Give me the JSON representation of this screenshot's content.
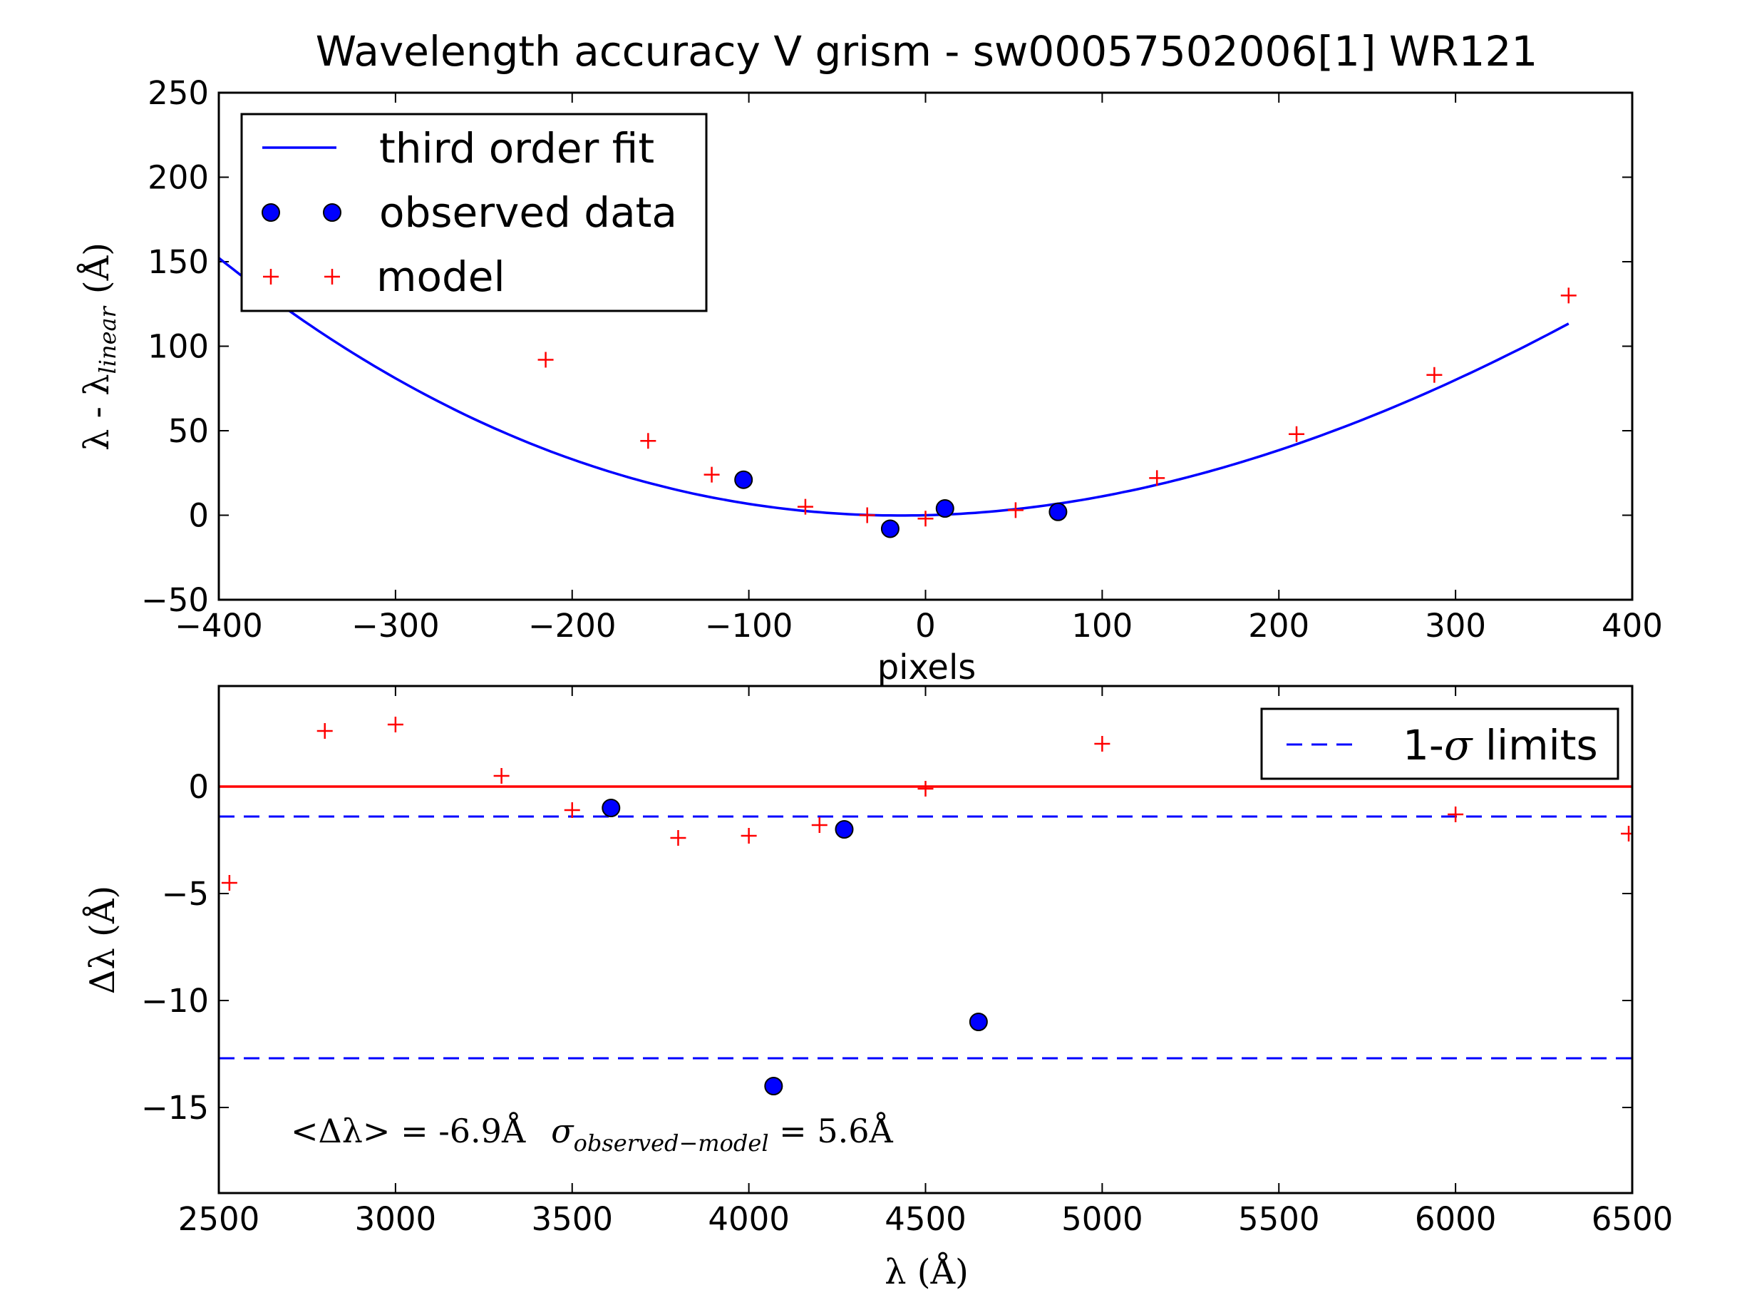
{
  "chart_data": [
    {
      "type": "scatter",
      "title": "Wavelength accuracy V grism - sw00057502006[1] WR121",
      "xlabel": "pixels",
      "ylabel": "λ - λlinear  (Å)",
      "ylabel_main": "λ - λ",
      "ylabel_sub": "linear",
      "ylabel_unit": "(Å)",
      "xlim": [
        -400,
        400
      ],
      "ylim": [
        -50,
        250
      ],
      "xticks": [
        -400,
        -300,
        -200,
        -100,
        0,
        100,
        200,
        300,
        400
      ],
      "yticks": [
        -50,
        0,
        50,
        100,
        150,
        200,
        250
      ],
      "xtick_labels": [
        "−400",
        "−300",
        "−200",
        "−100",
        "0",
        "100",
        "200",
        "300",
        "400"
      ],
      "ytick_labels": [
        "−50",
        "0",
        "50",
        "100",
        "150",
        "200",
        "250"
      ],
      "legend": {
        "placement": "upper-left",
        "entries": [
          "third order fit",
          "observed data",
          "model"
        ]
      },
      "series": [
        {
          "name": "third order fit",
          "style": "line",
          "color": "#0000ff",
          "fit_coefficients": {
            "c1": 0.0254,
            "c2": 0.000895,
            "c3": -3e-07
          },
          "x_range": [
            -400,
            365
          ]
        },
        {
          "name": "observed data",
          "style": "circle",
          "color": "#0000ff",
          "x": [
            -103,
            -20,
            11,
            75
          ],
          "y": [
            21,
            -8,
            4,
            2
          ]
        },
        {
          "name": "model",
          "style": "plus",
          "color": "#ff0000",
          "x": [
            -215,
            -157,
            -121,
            -68,
            -33,
            0,
            51,
            131,
            210,
            288,
            364
          ],
          "y": [
            92,
            44,
            24,
            5,
            0,
            -2,
            3,
            22,
            48,
            83,
            130
          ]
        }
      ]
    },
    {
      "type": "scatter",
      "xlabel": "λ (Å)",
      "ylabel": "Δλ (Å)",
      "xlim": [
        2500,
        6500
      ],
      "ylim": [
        -19,
        4.7
      ],
      "xticks": [
        2500,
        3000,
        3500,
        4000,
        4500,
        5000,
        5500,
        6000,
        6500
      ],
      "yticks": [
        -15,
        -10,
        -5,
        0
      ],
      "xtick_labels": [
        "2500",
        "3000",
        "3500",
        "4000",
        "4500",
        "5000",
        "5500",
        "6000",
        "6500"
      ],
      "ytick_labels": [
        "−15",
        "−10",
        "−5",
        "0"
      ],
      "legend": {
        "placement": "upper-right",
        "entries": [
          "1-σ limits"
        ],
        "label_prefix": "1-",
        "label_symbol": "σ",
        "label_suffix": " limits"
      },
      "annotation": {
        "mean_prefix": "<Δλ> = -6.9Å",
        "sigma_symbol": "σ",
        "sigma_sub": "observed−model",
        "sigma_value": " = 5.6Å"
      },
      "zero_line": {
        "y": 0,
        "color": "#ff0000"
      },
      "limits": {
        "y": [
          -1.4,
          -12.7
        ],
        "color": "#0000ff",
        "label": "1-σ limits"
      },
      "series": [
        {
          "name": "observed data",
          "style": "circle",
          "color": "#0000ff",
          "x": [
            3610,
            4070,
            4270,
            4650
          ],
          "y": [
            -1.0,
            -14.0,
            -2.0,
            -11.0
          ]
        },
        {
          "name": "model",
          "style": "plus",
          "color": "#ff0000",
          "x": [
            2530,
            2800,
            3000,
            3300,
            3500,
            3800,
            4000,
            4200,
            4500,
            5000,
            6000,
            6490
          ],
          "y": [
            -4.5,
            2.6,
            2.9,
            0.5,
            -1.1,
            -2.4,
            -2.3,
            -1.8,
            -0.1,
            2.0,
            -1.3,
            -2.2
          ]
        }
      ]
    }
  ]
}
